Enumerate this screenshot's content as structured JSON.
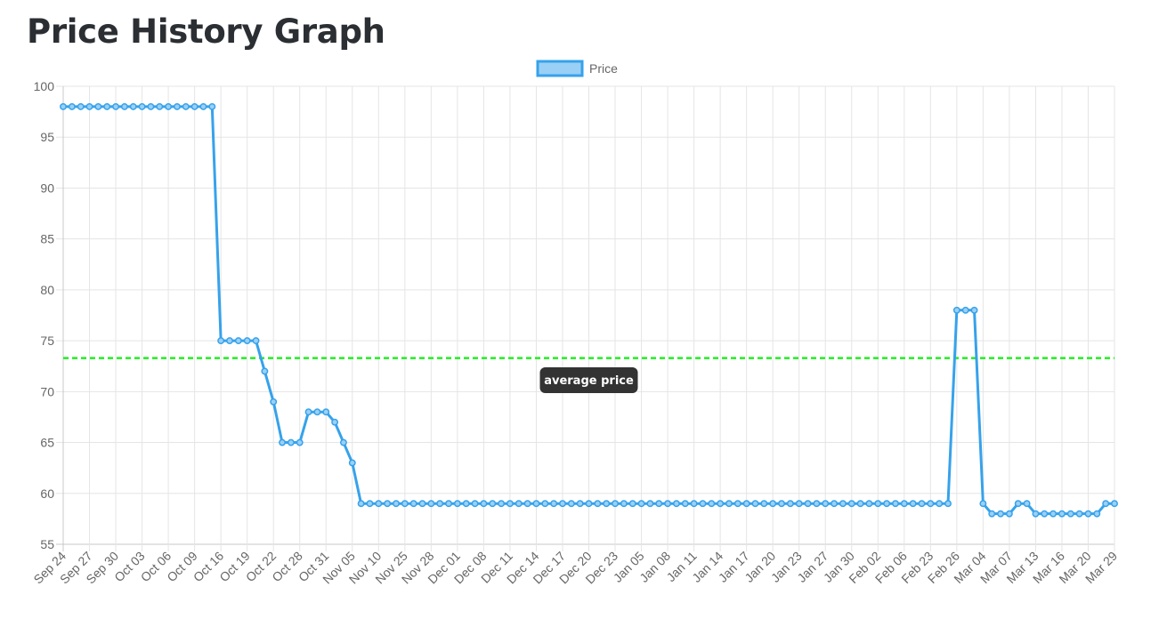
{
  "page": {
    "title": "Price History Graph"
  },
  "chart_data": {
    "type": "line",
    "title": "",
    "xlabel": "",
    "ylabel": "",
    "ylim": [
      55,
      100
    ],
    "y_ticks": [
      55,
      60,
      65,
      70,
      75,
      80,
      85,
      90,
      95,
      100
    ],
    "grid": true,
    "legend": {
      "position": "top-center",
      "entries": [
        "Price"
      ]
    },
    "x_tick_labels": [
      "Sep 24",
      "Sep 27",
      "Sep 30",
      "Oct 03",
      "Oct 06",
      "Oct 09",
      "Oct 16",
      "Oct 19",
      "Oct 22",
      "Oct 28",
      "Oct 31",
      "Nov 05",
      "Nov 10",
      "Nov 25",
      "Nov 28",
      "Dec 01",
      "Dec 08",
      "Dec 11",
      "Dec 14",
      "Dec 17",
      "Dec 20",
      "Dec 23",
      "Jan 05",
      "Jan 08",
      "Jan 11",
      "Jan 14",
      "Jan 17",
      "Jan 20",
      "Jan 23",
      "Jan 27",
      "Jan 30",
      "Feb 02",
      "Feb 06",
      "Feb 23",
      "Feb 26",
      "Mar 04",
      "Mar 07",
      "Mar 13",
      "Mar 16",
      "Mar 20",
      "Mar 29"
    ],
    "series": [
      {
        "name": "Price",
        "color": "#36a2eb",
        "fill_color": "#9ad0f5",
        "values": [
          98,
          98,
          98,
          98,
          98,
          98,
          98,
          98,
          98,
          98,
          98,
          98,
          98,
          98,
          98,
          98,
          98,
          98,
          75,
          75,
          75,
          75,
          75,
          72,
          69,
          65,
          65,
          65,
          68,
          68,
          68,
          67,
          65,
          63,
          59,
          59,
          59,
          59,
          59,
          59,
          59,
          59,
          59,
          59,
          59,
          59,
          59,
          59,
          59,
          59,
          59,
          59,
          59,
          59,
          59,
          59,
          59,
          59,
          59,
          59,
          59,
          59,
          59,
          59,
          59,
          59,
          59,
          59,
          59,
          59,
          59,
          59,
          59,
          59,
          59,
          59,
          59,
          59,
          59,
          59,
          59,
          59,
          59,
          59,
          59,
          59,
          59,
          59,
          59,
          59,
          59,
          59,
          59,
          59,
          59,
          59,
          59,
          59,
          59,
          59,
          59,
          59,
          78,
          78,
          78,
          59,
          58,
          58,
          58,
          59,
          59,
          58,
          58,
          58,
          58,
          58,
          58,
          58,
          58,
          59,
          59
        ]
      }
    ],
    "reference_lines": [
      {
        "label": "average price",
        "value": 73.3,
        "color": "#22ee22",
        "style": "dashed"
      }
    ]
  }
}
